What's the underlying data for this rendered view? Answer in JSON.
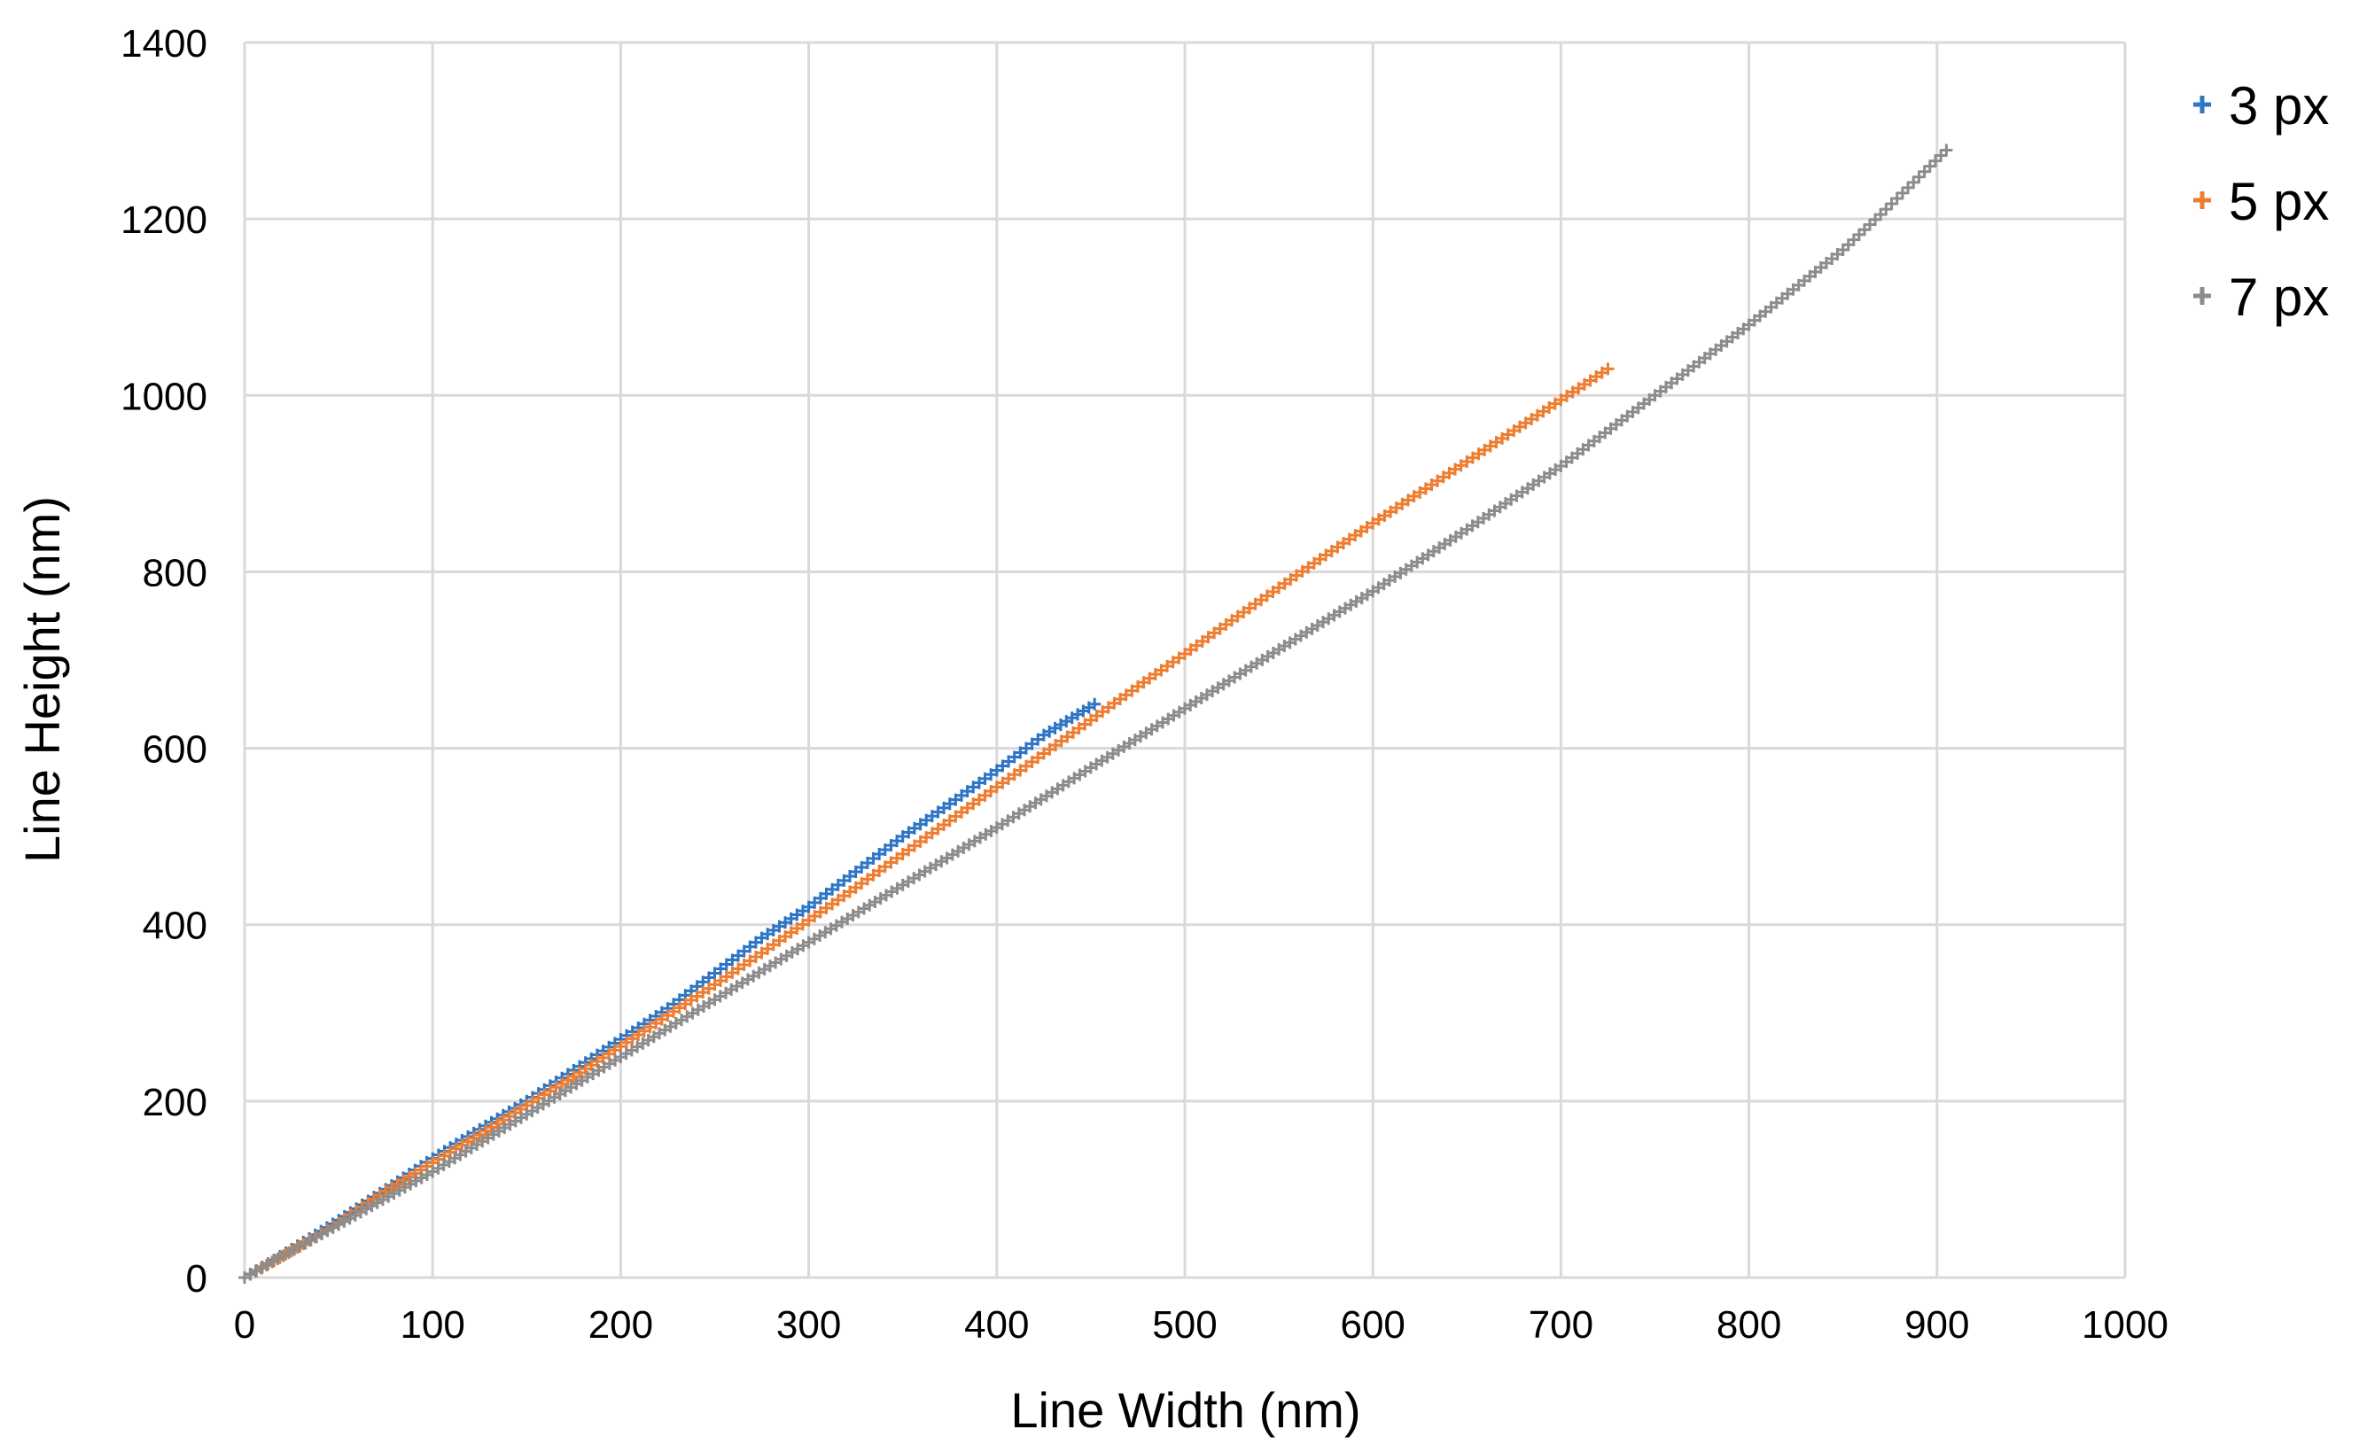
{
  "chart_data": {
    "type": "scatter",
    "xlabel": "Line Width (nm)",
    "ylabel": "Line Height (nm)",
    "xlim": [
      0,
      1000
    ],
    "ylim": [
      0,
      1400
    ],
    "xticks": [
      "0",
      "100",
      "200",
      "300",
      "400",
      "500",
      "600",
      "700",
      "800",
      "900",
      "1000"
    ],
    "yticks": [
      "0",
      "200",
      "400",
      "600",
      "800",
      "1000",
      "1200",
      "1400"
    ],
    "xtick_values": [
      0,
      100,
      200,
      300,
      400,
      500,
      600,
      700,
      800,
      900,
      1000
    ],
    "ytick_values": [
      0,
      200,
      400,
      600,
      800,
      1000,
      1200,
      1400
    ],
    "grid": true,
    "legend_position": "top-right",
    "marker": "plus",
    "series": [
      {
        "name": "3 px",
        "color": "#2E75C5",
        "x": [
          0,
          25,
          50,
          75,
          100,
          125,
          150,
          175,
          200,
          225,
          250,
          275,
          300,
          325,
          350,
          375,
          400,
          425,
          452
        ],
        "y": [
          0,
          32,
          65,
          100,
          135,
          168,
          200,
          235,
          270,
          305,
          345,
          385,
          420,
          460,
          500,
          537,
          575,
          615,
          650
        ]
      },
      {
        "name": "5 px",
        "color": "#ED7D31",
        "x": [
          0,
          25,
          50,
          75,
          100,
          125,
          150,
          175,
          200,
          225,
          250,
          275,
          300,
          325,
          350,
          375,
          400,
          425,
          450,
          475,
          500,
          525,
          550,
          575,
          600,
          625,
          650,
          675,
          700,
          725
        ],
        "y": [
          0,
          30,
          62,
          98,
          130,
          162,
          195,
          228,
          262,
          297,
          332,
          368,
          405,
          442,
          480,
          518,
          556,
          594,
          632,
          670,
          707,
          745,
          782,
          819,
          855,
          890,
          925,
          960,
          995,
          1030
        ]
      },
      {
        "name": "7 px",
        "color": "#8C8C8C",
        "x": [
          0,
          50,
          100,
          150,
          200,
          250,
          300,
          350,
          400,
          450,
          500,
          550,
          600,
          650,
          700,
          750,
          800,
          850,
          870,
          905
        ],
        "y": [
          0,
          60,
          120,
          185,
          250,
          315,
          380,
          445,
          510,
          578,
          645,
          712,
          778,
          848,
          920,
          1000,
          1080,
          1165,
          1205,
          1278
        ]
      }
    ]
  }
}
